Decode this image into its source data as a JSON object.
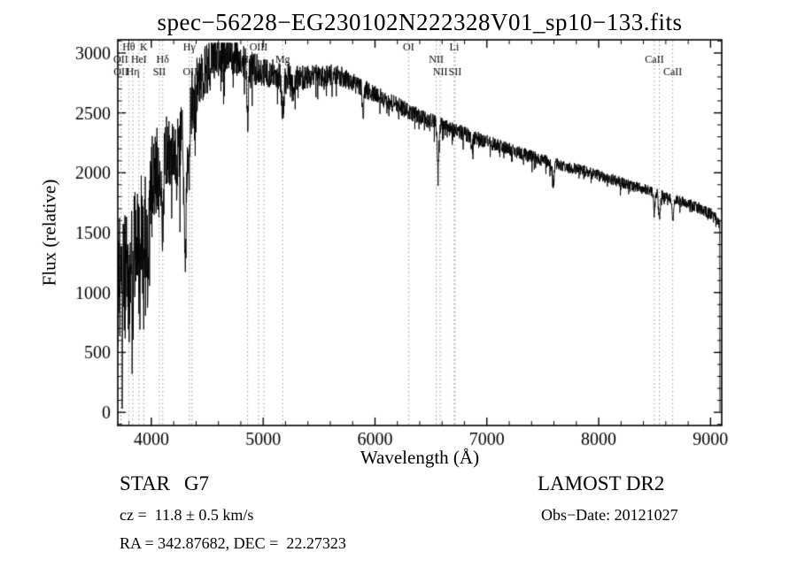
{
  "chart_data": {
    "type": "line",
    "title": "spec−56228−EG230102N222328V01_sp10−133.fits",
    "xlabel": "Wavelength (Å)",
    "ylabel": "Flux (relative)",
    "xlim": [
      3700,
      9100
    ],
    "ylim": [
      0,
      3000
    ],
    "draw_ylim": [
      -110,
      3110
    ],
    "x_ticks": [
      4000,
      5000,
      6000,
      7000,
      8000,
      9000
    ],
    "y_ticks": [
      0,
      500,
      1000,
      1500,
      2000,
      2500,
      3000
    ],
    "x_minor_step": 200,
    "y_minor_step": 100,
    "grid": false,
    "legend": "none",
    "line_color": "#000000",
    "marker_line_color": "#999999",
    "line_markers": [
      {
        "wavelength": 3727,
        "label": "OII",
        "row": 2
      },
      {
        "wavelength": 3729,
        "label": "OII",
        "row": 3
      },
      {
        "wavelength": 3798,
        "label": "Hθ",
        "row": 1
      },
      {
        "wavelength": 3835,
        "label": "Hη",
        "row": 3
      },
      {
        "wavelength": 3889,
        "label": "HeI",
        "row": 2
      },
      {
        "wavelength": 3933,
        "label": "K",
        "row": 1
      },
      {
        "wavelength": 4072,
        "label": "SII",
        "row": 3
      },
      {
        "wavelength": 4102,
        "label": "Hδ",
        "row": 2
      },
      {
        "wavelength": 4340,
        "label": "Hγ",
        "row": 1
      },
      {
        "wavelength": 4363,
        "label": "OIII",
        "row": 3
      },
      {
        "wavelength": 4861,
        "label": "Hβ",
        "row": 2
      },
      {
        "wavelength": 4959,
        "label": "OIII",
        "row": 1
      },
      {
        "wavelength": 5007,
        "label": "",
        "row": 1
      },
      {
        "wavelength": 5175,
        "label": "Mg",
        "row": 2
      },
      {
        "wavelength": 6300,
        "label": "OI",
        "row": 1
      },
      {
        "wavelength": 6548,
        "label": "NII",
        "row": 2
      },
      {
        "wavelength": 6583,
        "label": "NII",
        "row": 3
      },
      {
        "wavelength": 6708,
        "label": "Li",
        "row": 1
      },
      {
        "wavelength": 6716,
        "label": "SII",
        "row": 3
      },
      {
        "wavelength": 8498,
        "label": "CaII",
        "row": 2
      },
      {
        "wavelength": 8542,
        "label": "",
        "row": 2
      },
      {
        "wavelength": 8662,
        "label": "CaII",
        "row": 3
      }
    ],
    "spectrum_model": {
      "wavelength_step": 2,
      "wavelength_end_drop": 9084,
      "noise_seed": 20121027,
      "continuum": [
        [
          3700,
          1050
        ],
        [
          3780,
          1180
        ],
        [
          3860,
          1380
        ],
        [
          3940,
          1650
        ],
        [
          4000,
          1900
        ],
        [
          4080,
          2060
        ],
        [
          4160,
          2150
        ],
        [
          4240,
          2230
        ],
        [
          4300,
          2380
        ],
        [
          4360,
          2600
        ],
        [
          4420,
          2740
        ],
        [
          4480,
          2850
        ],
        [
          4550,
          2930
        ],
        [
          4620,
          2985
        ],
        [
          4680,
          3000
        ],
        [
          4740,
          2975
        ],
        [
          4800,
          2945
        ],
        [
          4860,
          2910
        ],
        [
          4920,
          2870
        ],
        [
          5000,
          2845
        ],
        [
          5100,
          2825
        ],
        [
          5200,
          2810
        ],
        [
          5300,
          2795
        ],
        [
          5400,
          2800
        ],
        [
          5500,
          2810
        ],
        [
          5600,
          2815
        ],
        [
          5700,
          2805
        ],
        [
          5800,
          2760
        ],
        [
          5900,
          2705
        ],
        [
          6000,
          2650
        ],
        [
          6100,
          2605
        ],
        [
          6200,
          2560
        ],
        [
          6300,
          2515
        ],
        [
          6400,
          2470
        ],
        [
          6500,
          2430
        ],
        [
          6600,
          2395
        ],
        [
          6700,
          2360
        ],
        [
          6800,
          2325
        ],
        [
          6900,
          2290
        ],
        [
          7000,
          2258
        ],
        [
          7100,
          2225
        ],
        [
          7200,
          2195
        ],
        [
          7300,
          2165
        ],
        [
          7400,
          2135
        ],
        [
          7500,
          2105
        ],
        [
          7600,
          2080
        ],
        [
          7700,
          2055
        ],
        [
          7800,
          2030
        ],
        [
          7900,
          2005
        ],
        [
          8000,
          1975
        ],
        [
          8100,
          1948
        ],
        [
          8200,
          1920
        ],
        [
          8300,
          1892
        ],
        [
          8400,
          1865
        ],
        [
          8500,
          1838
        ],
        [
          8600,
          1805
        ],
        [
          8700,
          1772
        ],
        [
          8800,
          1740
        ],
        [
          8900,
          1705
        ],
        [
          9000,
          1660
        ],
        [
          9082,
          1580
        ]
      ],
      "absorption_features": [
        [
          3727,
          150,
          4
        ],
        [
          3798,
          220,
          5
        ],
        [
          3835,
          260,
          5
        ],
        [
          3889,
          230,
          5
        ],
        [
          3933,
          520,
          7
        ],
        [
          3968,
          470,
          7
        ],
        [
          4072,
          150,
          5
        ],
        [
          4102,
          430,
          6
        ],
        [
          4227,
          200,
          5
        ],
        [
          4305,
          980,
          13
        ],
        [
          4340,
          430,
          6
        ],
        [
          4383,
          220,
          5
        ],
        [
          4861,
          470,
          7
        ],
        [
          5175,
          300,
          11
        ],
        [
          5270,
          150,
          7
        ],
        [
          5893,
          210,
          8
        ],
        [
          6563,
          390,
          7
        ],
        [
          6867,
          110,
          7
        ],
        [
          7594,
          160,
          9
        ],
        [
          8498,
          140,
          7
        ],
        [
          8542,
          200,
          8
        ],
        [
          8662,
          180,
          8
        ]
      ],
      "noise_sigma": [
        [
          3700,
          340
        ],
        [
          3800,
          310
        ],
        [
          3900,
          280
        ],
        [
          4000,
          235
        ],
        [
          4100,
          210
        ],
        [
          4200,
          195
        ],
        [
          4300,
          175
        ],
        [
          4400,
          148
        ],
        [
          4500,
          125
        ],
        [
          4600,
          108
        ],
        [
          4700,
          97
        ],
        [
          4800,
          89
        ],
        [
          4900,
          83
        ],
        [
          5000,
          76
        ],
        [
          5200,
          66
        ],
        [
          5400,
          59
        ],
        [
          5600,
          53
        ],
        [
          5800,
          49
        ],
        [
          6000,
          45
        ],
        [
          6200,
          42
        ],
        [
          6400,
          40
        ],
        [
          6600,
          38
        ],
        [
          6800,
          36
        ],
        [
          7000,
          34
        ],
        [
          7200,
          32
        ],
        [
          7400,
          31
        ],
        [
          7600,
          30
        ],
        [
          7800,
          29
        ],
        [
          8000,
          28
        ],
        [
          8200,
          27
        ],
        [
          8400,
          26
        ],
        [
          8600,
          26
        ],
        [
          8800,
          27
        ],
        [
          9000,
          29
        ]
      ]
    }
  },
  "footer": {
    "object_type": "STAR",
    "subclass": "G7",
    "velocity": "cz =  11.8 ± 0.5 km/s",
    "coordinates": "RA = 342.87682, DEC =  22.27323",
    "survey": "LAMOST DR2",
    "obs_date": "Obs−Date: 20121027"
  }
}
